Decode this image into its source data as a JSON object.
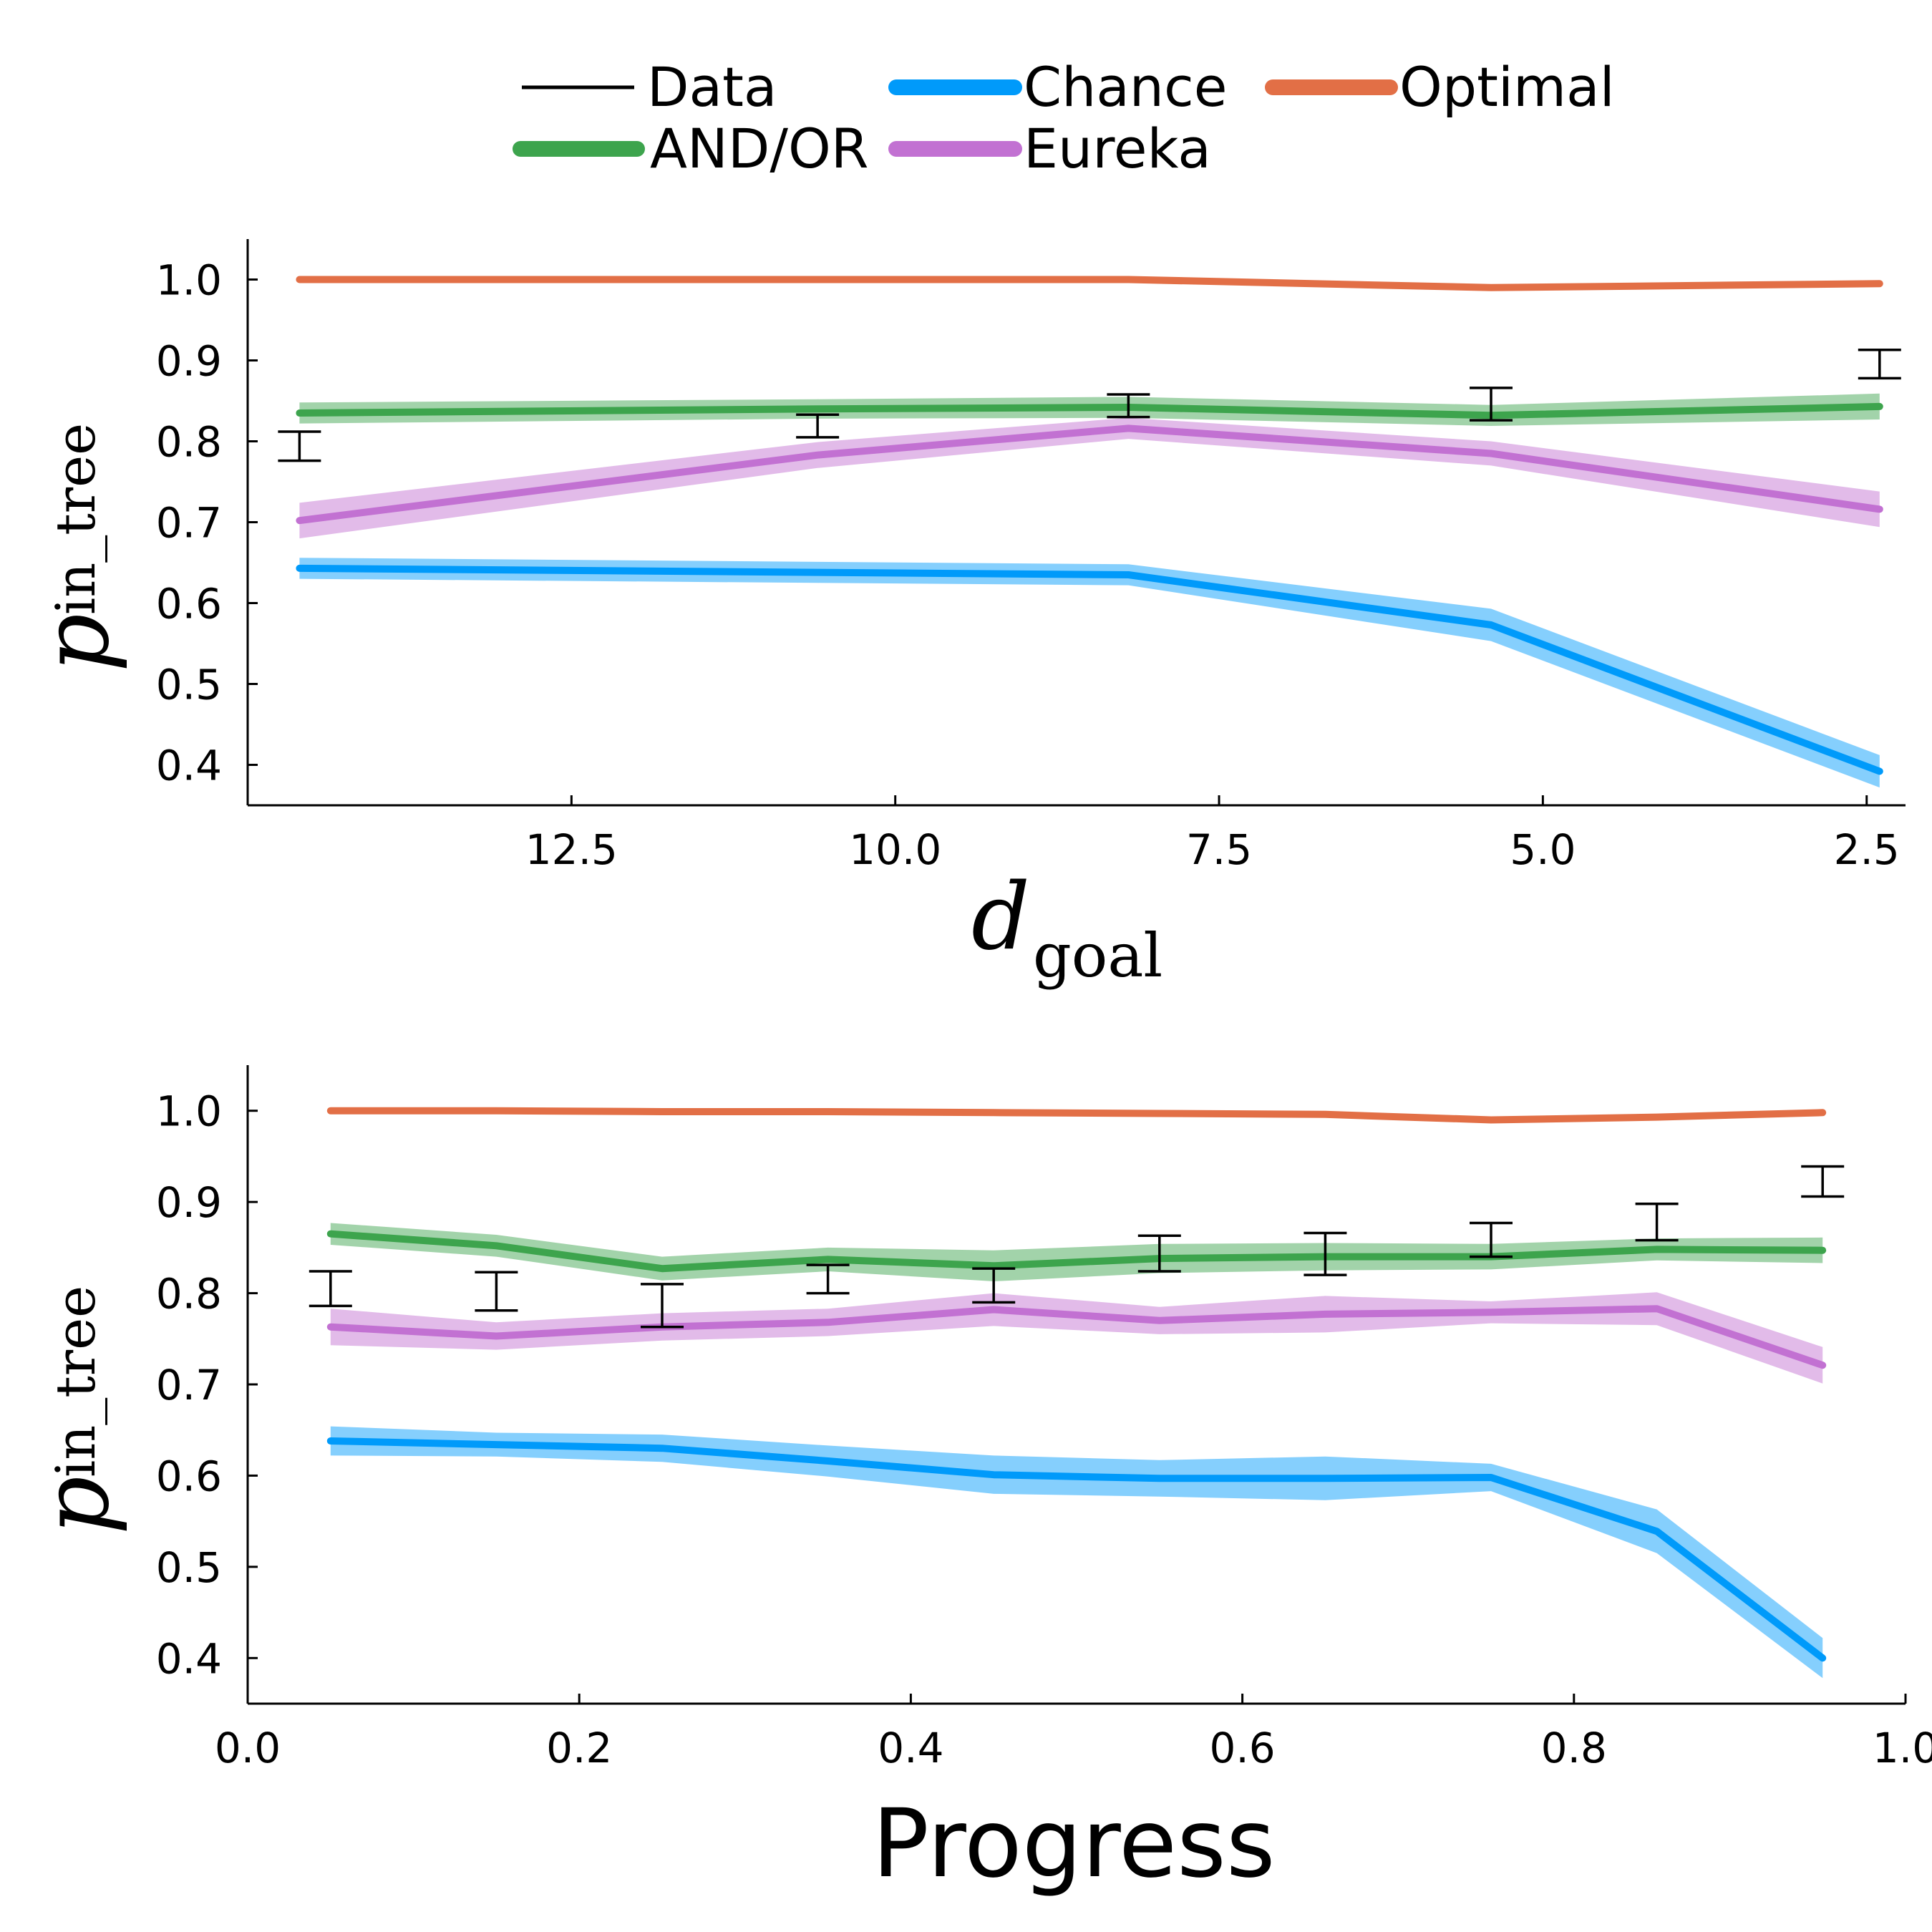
{
  "legend": {
    "items": [
      {
        "label": "Data",
        "color": "#000000",
        "style": "thin"
      },
      {
        "label": "Chance",
        "color": "#009AFA",
        "style": "thick"
      },
      {
        "label": "Optimal",
        "color": "#E26F46",
        "style": "thick"
      },
      {
        "label": "AND/OR",
        "color": "#3DA44D",
        "style": "thick"
      },
      {
        "label": "Eureka",
        "color": "#C271D2",
        "style": "thick"
      }
    ]
  },
  "chart_data": [
    {
      "type": "line",
      "xlabel_main": "d",
      "xlabel_sub": "goal",
      "ylabel_main": "p",
      "ylabel_sub": "in_tree",
      "xlim": [
        15.0,
        2.2
      ],
      "x_reversed": true,
      "ylim": [
        0.35,
        1.05
      ],
      "xticks": [
        12.5,
        10.0,
        7.5,
        5.0,
        2.5
      ],
      "xtick_labels": [
        "12.5",
        "10.0",
        "7.5",
        "5.0",
        "2.5"
      ],
      "yticks": [
        0.4,
        0.5,
        0.6,
        0.7,
        0.8,
        0.9,
        1.0
      ],
      "ytick_labels": [
        "0.4",
        "0.5",
        "0.6",
        "0.7",
        "0.8",
        "0.9",
        "1.0"
      ],
      "grid": false,
      "series": [
        {
          "name": "Optimal",
          "color": "#E26F46",
          "x": [
            14.6,
            8.2,
            5.4,
            2.4
          ],
          "y": [
            1.0,
            1.0,
            0.99,
            0.995
          ],
          "band": null
        },
        {
          "name": "AND/OR",
          "color": "#3DA44D",
          "x": [
            14.6,
            10.6,
            8.2,
            5.4,
            2.4
          ],
          "y": [
            0.835,
            0.84,
            0.842,
            0.832,
            0.843
          ],
          "band": [
            0.013,
            0.012,
            0.013,
            0.013,
            0.016
          ]
        },
        {
          "name": "Eureka",
          "color": "#C271D2",
          "x": [
            14.6,
            10.6,
            8.2,
            5.4,
            2.4
          ],
          "y": [
            0.702,
            0.783,
            0.816,
            0.785,
            0.716
          ],
          "band": [
            0.022,
            0.016,
            0.013,
            0.015,
            0.022
          ]
        },
        {
          "name": "Chance",
          "color": "#009AFA",
          "x": [
            14.6,
            10.6,
            8.2,
            5.4,
            2.4
          ],
          "y": [
            0.643,
            0.638,
            0.635,
            0.573,
            0.392
          ],
          "band": [
            0.013,
            0.013,
            0.013,
            0.02,
            0.02
          ]
        }
      ],
      "data_errorbars": {
        "name": "Data",
        "x": [
          14.6,
          10.6,
          8.2,
          5.4,
          2.4
        ],
        "low": [
          0.776,
          0.805,
          0.83,
          0.826,
          0.878
        ],
        "high": [
          0.812,
          0.833,
          0.858,
          0.866,
          0.913
        ]
      }
    },
    {
      "type": "line",
      "xlabel": "Progress",
      "ylabel_main": "p",
      "ylabel_sub": "in_tree",
      "xlim": [
        0.0,
        1.0
      ],
      "x_reversed": false,
      "ylim": [
        0.35,
        1.05
      ],
      "xticks": [
        0.0,
        0.2,
        0.4,
        0.6,
        0.8,
        1.0
      ],
      "xtick_labels": [
        "0.0",
        "0.2",
        "0.4",
        "0.6",
        "0.8",
        "1.0"
      ],
      "yticks": [
        0.4,
        0.5,
        0.6,
        0.7,
        0.8,
        0.9,
        1.0
      ],
      "ytick_labels": [
        "0.4",
        "0.5",
        "0.6",
        "0.7",
        "0.8",
        "0.9",
        "1.0"
      ],
      "grid": false,
      "series": [
        {
          "name": "Optimal",
          "color": "#E26F46",
          "x": [
            0.05,
            0.15,
            0.25,
            0.35,
            0.45,
            0.55,
            0.65,
            0.75,
            0.85,
            0.95
          ],
          "y": [
            1.0,
            1.0,
            0.999,
            0.999,
            0.998,
            0.997,
            0.996,
            0.99,
            0.993,
            0.998
          ],
          "band": null
        },
        {
          "name": "AND/OR",
          "color": "#3DA44D",
          "x": [
            0.05,
            0.15,
            0.25,
            0.35,
            0.45,
            0.55,
            0.65,
            0.75,
            0.85,
            0.95
          ],
          "y": [
            0.865,
            0.852,
            0.827,
            0.837,
            0.83,
            0.838,
            0.84,
            0.84,
            0.848,
            0.847
          ],
          "band": [
            0.012,
            0.012,
            0.013,
            0.013,
            0.017,
            0.016,
            0.015,
            0.014,
            0.012,
            0.014
          ]
        },
        {
          "name": "Eureka",
          "color": "#C271D2",
          "x": [
            0.05,
            0.15,
            0.25,
            0.35,
            0.45,
            0.55,
            0.65,
            0.75,
            0.85,
            0.95
          ],
          "y": [
            0.763,
            0.753,
            0.763,
            0.768,
            0.782,
            0.77,
            0.777,
            0.779,
            0.783,
            0.721
          ],
          "band": [
            0.02,
            0.015,
            0.015,
            0.015,
            0.018,
            0.015,
            0.02,
            0.012,
            0.018,
            0.02
          ]
        },
        {
          "name": "Chance",
          "color": "#009AFA",
          "x": [
            0.05,
            0.15,
            0.25,
            0.35,
            0.45,
            0.55,
            0.65,
            0.75,
            0.85,
            0.95
          ],
          "y": [
            0.638,
            0.634,
            0.63,
            0.616,
            0.601,
            0.597,
            0.597,
            0.598,
            0.539,
            0.4
          ],
          "band": [
            0.016,
            0.013,
            0.015,
            0.017,
            0.021,
            0.02,
            0.024,
            0.015,
            0.024,
            0.022
          ]
        }
      ],
      "data_errorbars": {
        "name": "Data",
        "x": [
          0.05,
          0.15,
          0.25,
          0.35,
          0.45,
          0.55,
          0.65,
          0.75,
          0.85,
          0.95
        ],
        "low": [
          0.786,
          0.781,
          0.763,
          0.8,
          0.79,
          0.824,
          0.82,
          0.84,
          0.858,
          0.906
        ],
        "high": [
          0.824,
          0.823,
          0.81,
          0.831,
          0.827,
          0.863,
          0.866,
          0.877,
          0.898,
          0.939
        ]
      }
    }
  ]
}
